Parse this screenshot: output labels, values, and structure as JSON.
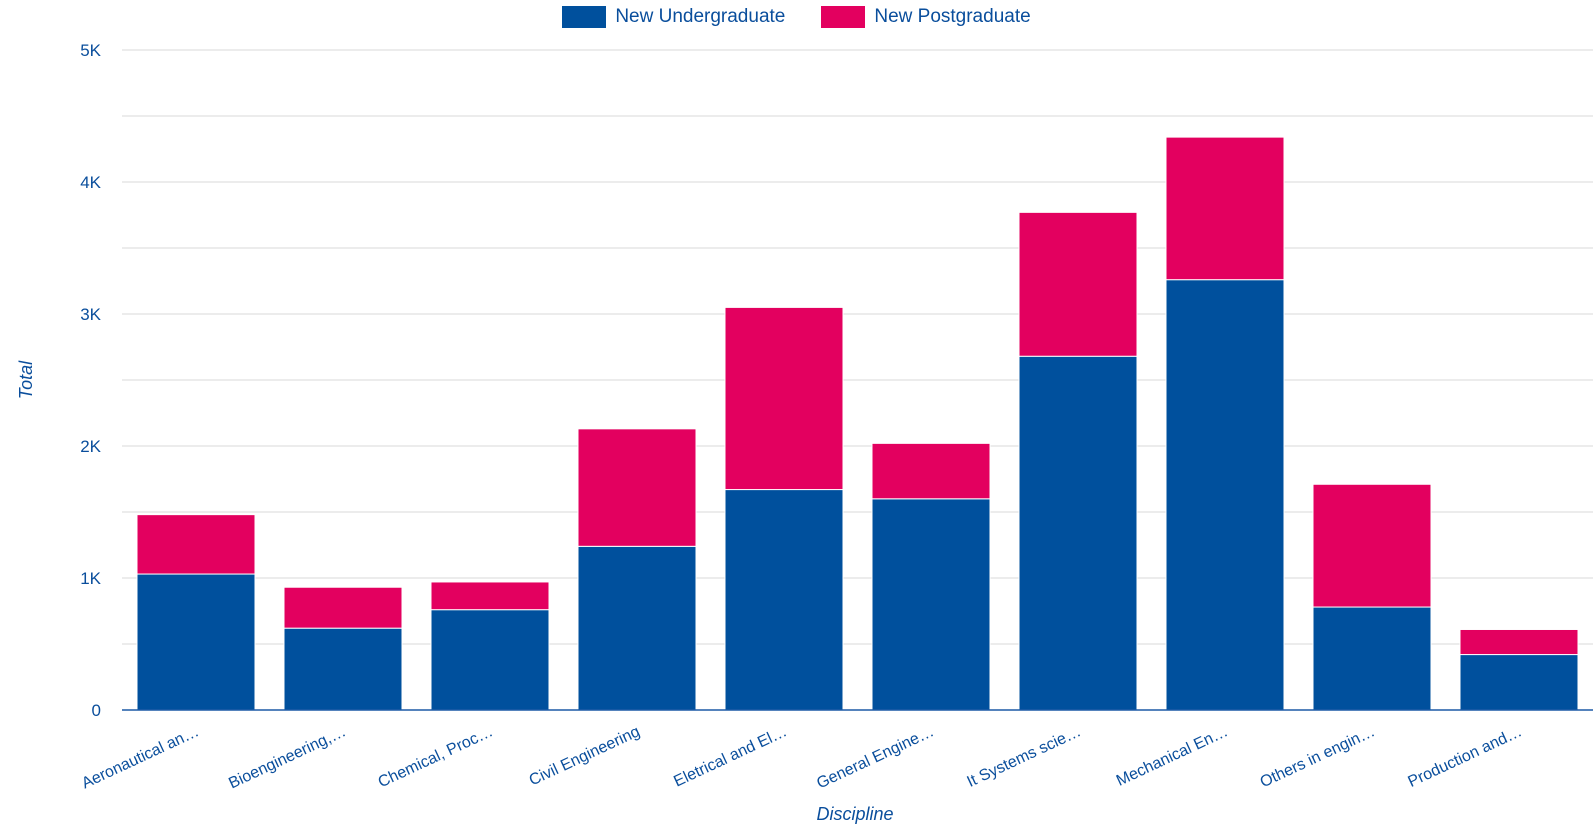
{
  "colors": {
    "undergraduate": "#00509d",
    "postgraduate": "#e3005f",
    "text": "#0a4e9c",
    "grid": "#d9d9d9"
  },
  "chart_data": {
    "type": "bar",
    "stacked": true,
    "xlabel": "Discipline",
    "ylabel": "Total",
    "ylim": [
      0,
      5000
    ],
    "grid": true,
    "legend_position": "top-center",
    "y_ticks": [
      {
        "value": 0,
        "label": "0"
      },
      {
        "value": 1000,
        "label": "1K"
      },
      {
        "value": 2000,
        "label": "2K"
      },
      {
        "value": 3000,
        "label": "3K"
      },
      {
        "value": 4000,
        "label": "4K"
      },
      {
        "value": 5000,
        "label": "5K"
      }
    ],
    "categories": [
      "Aeronautical an…",
      "Bioengineering,…",
      "Chemical, Proc…",
      "Civil Engineering",
      "Eletrical and El…",
      "General Engine…",
      "It Systems scie…",
      "Mechanical En…",
      "Others in engin…",
      "Production and…"
    ],
    "series": [
      {
        "name": "New Undergraduate",
        "values": [
          1030,
          620,
          760,
          1240,
          1670,
          1600,
          2680,
          3260,
          780,
          420
        ]
      },
      {
        "name": "New Postgraduate",
        "values": [
          450,
          310,
          210,
          890,
          1380,
          420,
          1090,
          1080,
          930,
          190
        ]
      }
    ]
  }
}
